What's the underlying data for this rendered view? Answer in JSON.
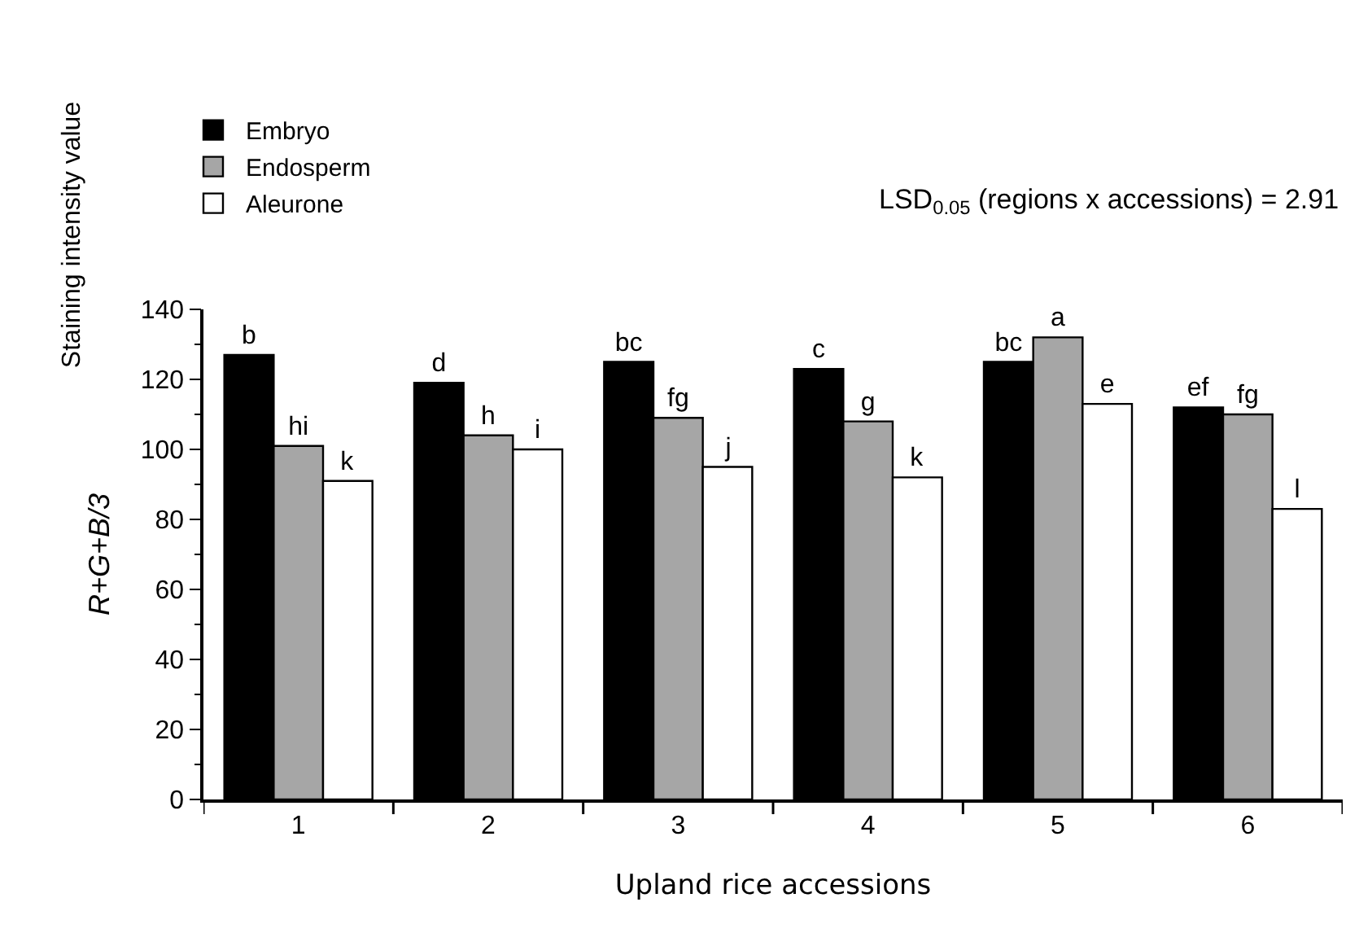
{
  "chart_data": {
    "type": "bar",
    "xlabel": "Upland rice accessions",
    "ylabel": "R+G+B/3",
    "categories": [
      "1",
      "2",
      "3",
      "4",
      "5",
      "6"
    ],
    "series": [
      {
        "name": "Embryo",
        "color": "#000000",
        "values": [
          127,
          119,
          125,
          123,
          125,
          112
        ],
        "value_labels": [
          "b",
          "d",
          "bc",
          "c",
          "bc",
          "ef"
        ]
      },
      {
        "name": "Endosperm",
        "color": "#a6a6a6",
        "values": [
          101,
          104,
          109,
          108,
          132,
          110
        ],
        "value_labels": [
          "hi",
          "h",
          "fg",
          "g",
          "a",
          "fg"
        ]
      },
      {
        "name": "Aleurone",
        "color": "#ffffff",
        "values": [
          91,
          100,
          95,
          92,
          113,
          83
        ],
        "value_labels": [
          "k",
          "i",
          "j",
          "k",
          "e",
          "l"
        ]
      }
    ],
    "ylim": [
      0,
      140
    ],
    "yticks": [
      0,
      20,
      40,
      60,
      80,
      100,
      120,
      140
    ],
    "legend": "top left",
    "annotations": [
      "Staining intensity value",
      "LSD$_{0.05}$ (regions x accessions) = 2.91"
    ]
  }
}
